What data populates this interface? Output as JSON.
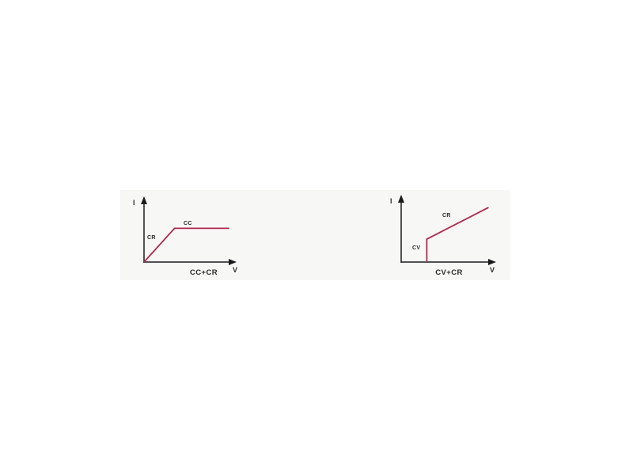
{
  "page": {
    "background": "#ffffff"
  },
  "panel": {
    "background": "#f7f7f6"
  },
  "colors": {
    "curve": "#b0294d",
    "axis": "#1a1a1a",
    "text": "#2b2b2b"
  },
  "chart_data": [
    {
      "type": "line",
      "title": "CC+CR",
      "xlabel": "V",
      "ylabel": "I",
      "grid": false,
      "axis_ticks": "none",
      "description": "Qualitative I-V curve: current rises linearly with voltage in constant-resistance (CR) mode, then stays flat at the current limit in constant-current (CC) mode.",
      "segments": [
        {
          "label": "CR",
          "from": [
            0,
            0
          ],
          "to": [
            0.33,
            0.52
          ]
        },
        {
          "label": "CC",
          "from": [
            0.33,
            0.52
          ],
          "to": [
            0.92,
            0.52
          ]
        }
      ],
      "points_normalized": [
        [
          0,
          0
        ],
        [
          0.33,
          0.52
        ],
        [
          0.92,
          0.52
        ]
      ]
    },
    {
      "type": "line",
      "title": "CV+CR",
      "xlabel": "V",
      "ylabel": "I",
      "grid": false,
      "axis_ticks": "none",
      "description": "Qualitative I-V curve: current rises vertically at a fixed voltage in constant-voltage (CV) mode, then increases linearly with voltage in constant-resistance (CR) mode.",
      "segments": [
        {
          "label": "CV",
          "from": [
            0.27,
            0
          ],
          "to": [
            0.27,
            0.34
          ]
        },
        {
          "label": "CR",
          "from": [
            0.27,
            0.34
          ],
          "to": [
            0.92,
            0.81
          ]
        }
      ],
      "points_normalized": [
        [
          0.27,
          0
        ],
        [
          0.27,
          0.34
        ],
        [
          0.92,
          0.81
        ]
      ]
    }
  ]
}
